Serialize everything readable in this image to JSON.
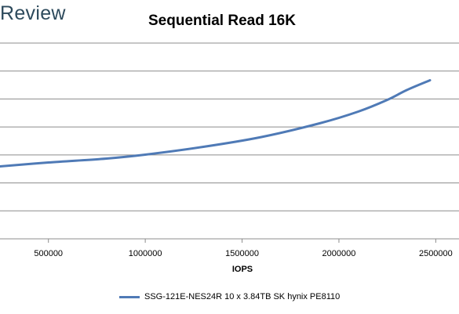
{
  "watermark": "Review",
  "chart_data": {
    "type": "line",
    "title": "Sequential Read 16K",
    "xlabel": "IOPS",
    "ylabel": "",
    "xlim": [
      250000,
      2620000
    ],
    "ylim": [
      0,
      1
    ],
    "x_tick_labels": [
      "500000",
      "1000000",
      "1500000",
      "2000000",
      "2500000"
    ],
    "x_ticks": [
      500000,
      1000000,
      1500000,
      2000000,
      2500000
    ],
    "y_grid_count": 8,
    "grid": true,
    "legend_position": "bottom",
    "series": [
      {
        "name": "SSG-121E-NES24R 10 x 3.84TB SK hynix PE8110",
        "color": "#4f7ab6",
        "x": [
          250000,
          500000,
          800000,
          1000000,
          1300000,
          1600000,
          1900000,
          2100000,
          2250000,
          2350000,
          2470000
        ],
        "y": [
          0.37,
          0.39,
          0.41,
          0.43,
          0.47,
          0.52,
          0.59,
          0.65,
          0.71,
          0.76,
          0.81
        ]
      }
    ]
  }
}
